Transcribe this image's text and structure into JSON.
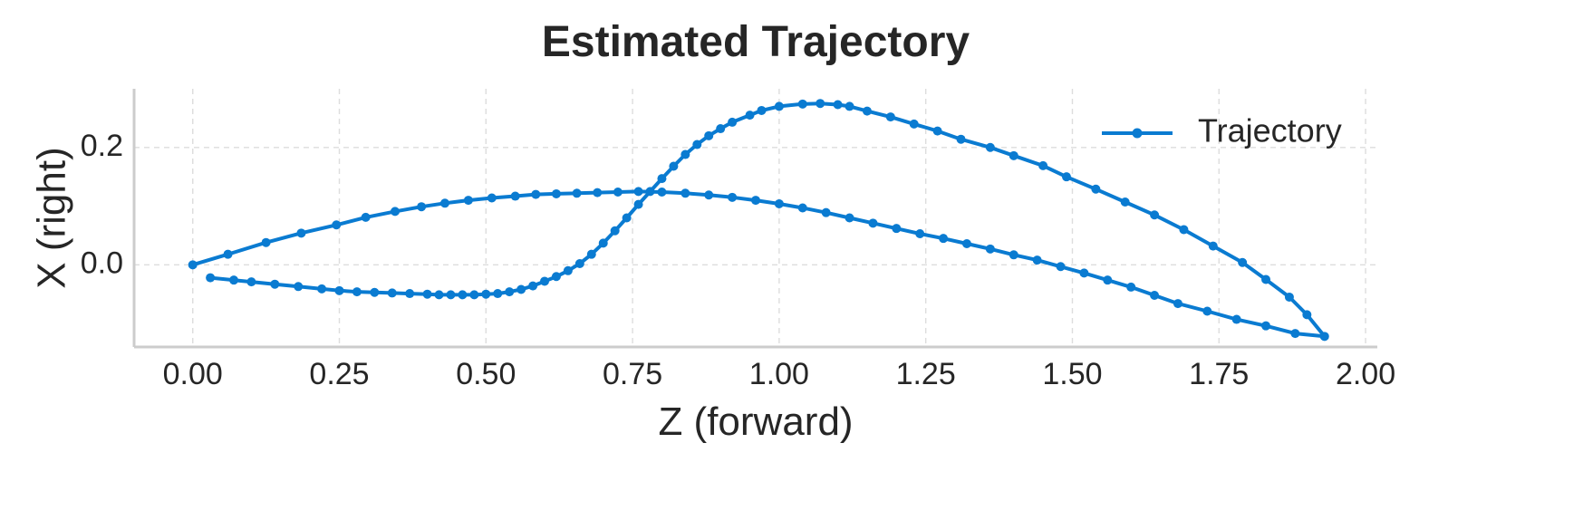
{
  "chart_data": {
    "type": "line",
    "title": "Estimated Trajectory",
    "xlabel": "Z (forward)",
    "ylabel": "X (right)",
    "xlim": [
      -0.1,
      2.02
    ],
    "ylim": [
      -0.14,
      0.3
    ],
    "grid": true,
    "legend_position": "top-right",
    "xticks": [
      "0.00",
      "0.25",
      "0.50",
      "0.75",
      "1.00",
      "1.25",
      "1.50",
      "1.75",
      "2.00"
    ],
    "yticks": [
      "0.0",
      "0.2"
    ],
    "colors": {
      "series": "#0a7bd1",
      "axis": "#cccccc",
      "grid": "#dddddd",
      "text": "#262626"
    },
    "series": [
      {
        "name": "Trajectory",
        "marker": "circle",
        "x": [
          0.0,
          0.06,
          0.125,
          0.185,
          0.245,
          0.295,
          0.345,
          0.39,
          0.43,
          0.47,
          0.51,
          0.55,
          0.585,
          0.62,
          0.655,
          0.69,
          0.725,
          0.76,
          0.8,
          0.84,
          0.88,
          0.92,
          0.96,
          1.0,
          1.04,
          1.08,
          1.12,
          1.16,
          1.2,
          1.24,
          1.28,
          1.32,
          1.36,
          1.4,
          1.44,
          1.48,
          1.52,
          1.56,
          1.6,
          1.64,
          1.68,
          1.73,
          1.78,
          1.83,
          1.88,
          1.93,
          1.9,
          1.87,
          1.83,
          1.79,
          1.74,
          1.69,
          1.64,
          1.59,
          1.54,
          1.49,
          1.45,
          1.4,
          1.36,
          1.31,
          1.27,
          1.23,
          1.19,
          1.15,
          1.12,
          1.1,
          1.07,
          1.04,
          1.0,
          0.97,
          0.95,
          0.92,
          0.9,
          0.88,
          0.86,
          0.84,
          0.82,
          0.8,
          0.78,
          0.76,
          0.74,
          0.72,
          0.7,
          0.68,
          0.66,
          0.64,
          0.62,
          0.6,
          0.58,
          0.56,
          0.54,
          0.52,
          0.5,
          0.48,
          0.46,
          0.44,
          0.42,
          0.4,
          0.37,
          0.34,
          0.31,
          0.28,
          0.25,
          0.22,
          0.18,
          0.14,
          0.1,
          0.07,
          0.03
        ],
        "y": [
          0.0,
          0.018,
          0.038,
          0.054,
          0.068,
          0.081,
          0.091,
          0.099,
          0.105,
          0.11,
          0.114,
          0.117,
          0.12,
          0.121,
          0.122,
          0.123,
          0.124,
          0.125,
          0.124,
          0.122,
          0.119,
          0.115,
          0.11,
          0.104,
          0.097,
          0.089,
          0.08,
          0.071,
          0.062,
          0.053,
          0.045,
          0.036,
          0.027,
          0.017,
          0.008,
          -0.003,
          -0.014,
          -0.026,
          -0.038,
          -0.052,
          -0.066,
          -0.079,
          -0.093,
          -0.104,
          -0.117,
          -0.122,
          -0.085,
          -0.055,
          -0.025,
          0.004,
          0.032,
          0.06,
          0.085,
          0.107,
          0.129,
          0.15,
          0.169,
          0.186,
          0.2,
          0.214,
          0.228,
          0.24,
          0.252,
          0.262,
          0.27,
          0.273,
          0.275,
          0.274,
          0.27,
          0.263,
          0.255,
          0.243,
          0.232,
          0.22,
          0.205,
          0.188,
          0.168,
          0.147,
          0.125,
          0.103,
          0.08,
          0.058,
          0.037,
          0.018,
          0.002,
          -0.01,
          -0.02,
          -0.028,
          -0.036,
          -0.042,
          -0.046,
          -0.049,
          -0.05,
          -0.051,
          -0.051,
          -0.051,
          -0.051,
          -0.05,
          -0.049,
          -0.048,
          -0.047,
          -0.046,
          -0.044,
          -0.041,
          -0.037,
          -0.033,
          -0.029,
          -0.026,
          -0.022
        ]
      }
    ]
  }
}
